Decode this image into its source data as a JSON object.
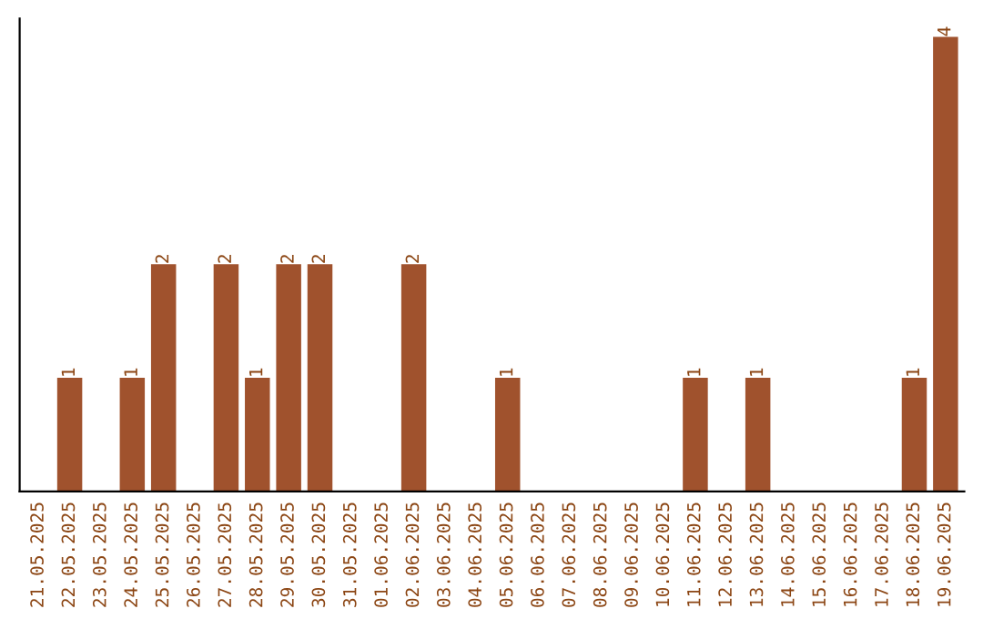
{
  "chart_data": {
    "type": "bar",
    "categories": [
      "21.05.2025",
      "22.05.2025",
      "23.05.2025",
      "24.05.2025",
      "25.05.2025",
      "26.05.2025",
      "27.05.2025",
      "28.05.2025",
      "29.05.2025",
      "30.05.2025",
      "31.05.2025",
      "01.06.2025",
      "02.06.2025",
      "03.06.2025",
      "04.06.2025",
      "05.06.2025",
      "06.06.2025",
      "07.06.2025",
      "08.06.2025",
      "09.06.2025",
      "10.06.2025",
      "11.06.2025",
      "12.06.2025",
      "13.06.2025",
      "14.06.2025",
      "15.06.2025",
      "16.06.2025",
      "17.06.2025",
      "18.06.2025",
      "19.06.2025"
    ],
    "values": [
      0,
      1,
      0,
      1,
      2,
      0,
      2,
      1,
      2,
      2,
      0,
      0,
      2,
      0,
      0,
      1,
      0,
      0,
      0,
      0,
      0,
      1,
      0,
      1,
      0,
      0,
      0,
      0,
      1,
      4
    ],
    "value_labels": [
      null,
      "1",
      null,
      "1",
      "2",
      null,
      "2",
      "1",
      "2",
      "2",
      null,
      null,
      "2",
      null,
      null,
      "1",
      null,
      null,
      null,
      null,
      null,
      "1",
      null,
      "1",
      null,
      null,
      null,
      null,
      "1",
      "4"
    ],
    "color": "#a0522d",
    "ylim": [
      0,
      4.16
    ],
    "tick_labels": "x",
    "grid": false,
    "legend": false
  }
}
